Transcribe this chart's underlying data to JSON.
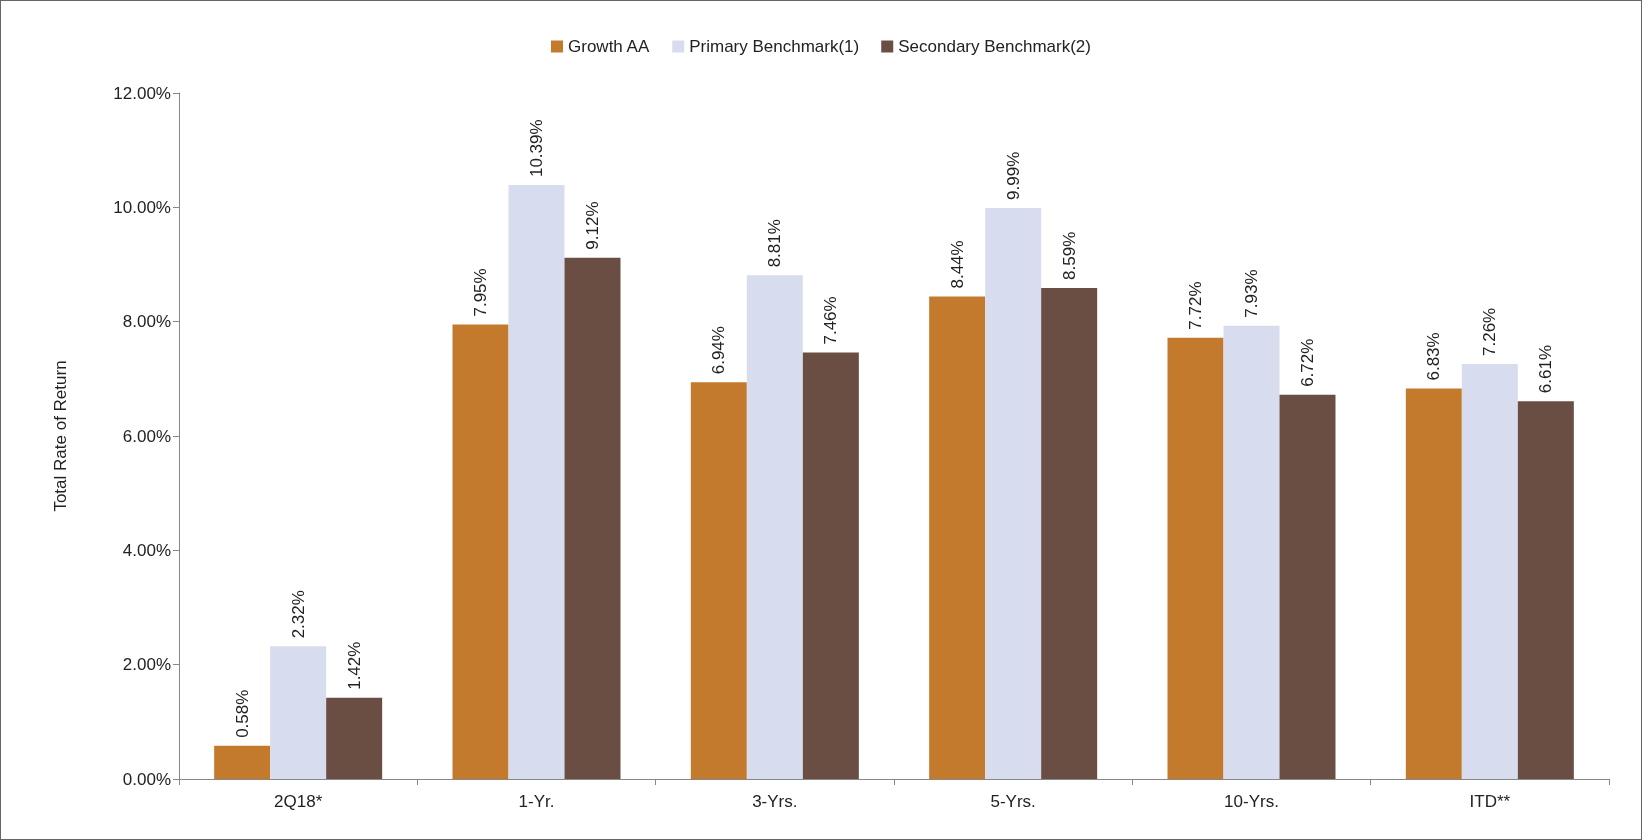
{
  "chart_data": {
    "type": "bar",
    "ylabel": "Total Rate of Return",
    "categories": [
      "2Q18*",
      "1-Yr.",
      "3-Yrs.",
      "5-Yrs.",
      "10-Yrs.",
      "ITD**"
    ],
    "series": [
      {
        "name": "Growth AA",
        "color": "#c47a2c",
        "values": [
          0.58,
          7.95,
          6.94,
          8.44,
          7.72,
          6.83
        ],
        "value_labels": [
          "0.58%",
          "7.95%",
          "6.94%",
          "8.44%",
          "7.72%",
          "6.83%"
        ]
      },
      {
        "name": "Primary Benchmark(1)",
        "color": "#d8dcef",
        "values": [
          2.32,
          10.39,
          8.81,
          9.99,
          7.93,
          7.26
        ],
        "value_labels": [
          "2.32%",
          "10.39%",
          "8.81%",
          "9.99%",
          "7.93%",
          "7.26%"
        ]
      },
      {
        "name": "Secondary Benchmark(2)",
        "color": "#6a4e44",
        "values": [
          1.42,
          9.12,
          7.46,
          8.59,
          6.72,
          6.61
        ],
        "value_labels": [
          "1.42%",
          "9.12%",
          "7.46%",
          "8.59%",
          "6.72%",
          "6.61%"
        ]
      }
    ],
    "ylim": [
      0,
      12
    ],
    "yticks": [
      {
        "value": 0,
        "label": "0.00%"
      },
      {
        "value": 2,
        "label": "2.00%"
      },
      {
        "value": 4,
        "label": "4.00%"
      },
      {
        "value": 6,
        "label": "6.00%"
      },
      {
        "value": 8,
        "label": "8.00%"
      },
      {
        "value": 10,
        "label": "10.00%"
      },
      {
        "value": 12,
        "label": "12.00%"
      }
    ],
    "grid": false,
    "legend": "top"
  }
}
